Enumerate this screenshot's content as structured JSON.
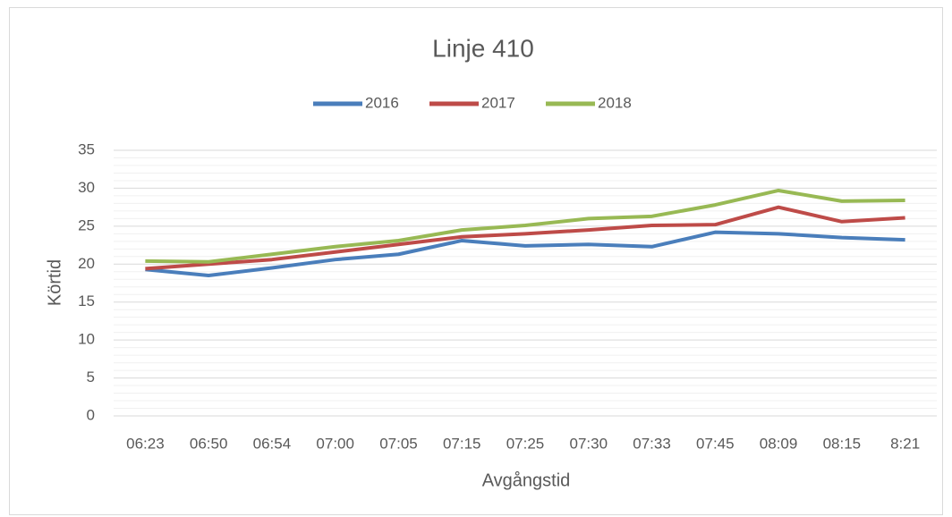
{
  "chart_data": {
    "type": "line",
    "title": "Linje 410",
    "x_label": "Avgångstid",
    "y_label": "Körtid",
    "categories": [
      "06:23",
      "06:50",
      "06:54",
      "07:00",
      "07:05",
      "07:15",
      "07:25",
      "07:30",
      "07:33",
      "07:45",
      "08:09",
      "08:15",
      "8:21"
    ],
    "series": [
      {
        "name": "2016",
        "color": "#4a7ebb",
        "values": [
          19.3,
          18.5,
          19.5,
          20.6,
          21.3,
          23.1,
          22.4,
          22.6,
          22.3,
          24.2,
          24.0,
          23.5,
          23.2
        ]
      },
      {
        "name": "2017",
        "color": "#be4b48",
        "values": [
          19.4,
          20.0,
          20.6,
          21.6,
          22.6,
          23.6,
          24.0,
          24.5,
          25.1,
          25.2,
          27.5,
          25.6,
          26.1
        ]
      },
      {
        "name": "2018",
        "color": "#98b954",
        "values": [
          20.4,
          20.3,
          21.3,
          22.3,
          23.1,
          24.5,
          25.1,
          26.0,
          26.3,
          27.8,
          29.7,
          28.3,
          28.4
        ]
      }
    ],
    "ylim": [
      0,
      35
    ],
    "yticks": [
      0,
      5,
      10,
      15,
      20,
      25,
      30,
      35
    ],
    "grid": true,
    "minor_grid": true,
    "legend": "top"
  }
}
